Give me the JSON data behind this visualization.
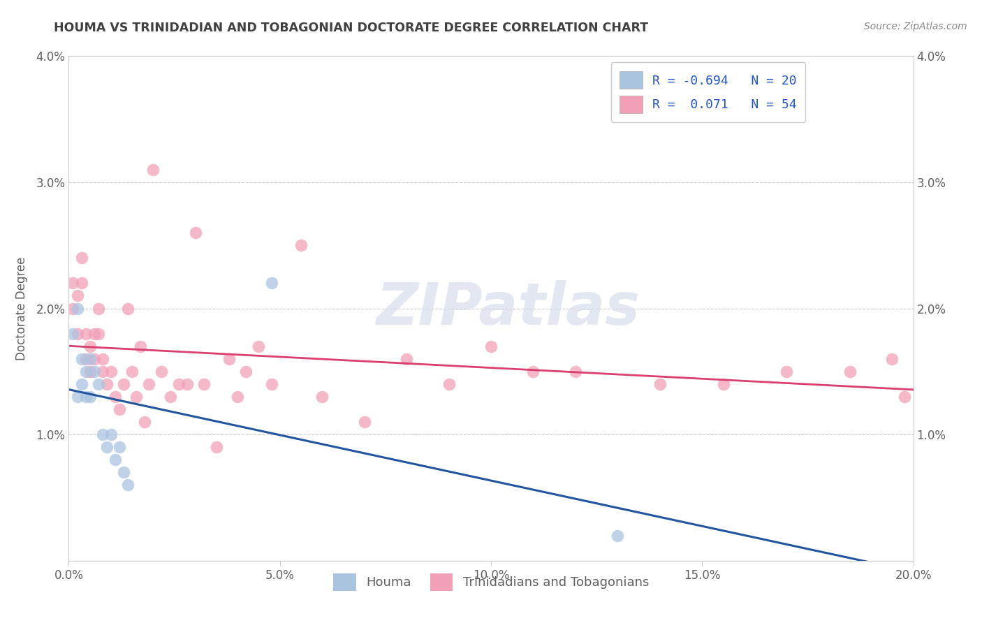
{
  "title": "HOUMA VS TRINIDADIAN AND TOBAGONIAN DOCTORATE DEGREE CORRELATION CHART",
  "source": "Source: ZipAtlas.com",
  "ylabel": "Doctorate Degree",
  "legend_label1": "R = -0.694   N = 20",
  "legend_label2": "R =  0.071   N = 54",
  "legend_name1": "Houma",
  "legend_name2": "Trinidadians and Tobagonians",
  "color1": "#aac4e0",
  "color2": "#f2a0b8",
  "line_color1": "#2255a0",
  "line_color2": "#d94070",
  "xlim": [
    0.0,
    0.2
  ],
  "ylim": [
    0.0,
    0.04
  ],
  "xticks": [
    0.0,
    0.05,
    0.1,
    0.15,
    0.2
  ],
  "yticks": [
    0.0,
    0.01,
    0.02,
    0.03,
    0.04
  ],
  "xticklabels": [
    "0.0%",
    "5.0%",
    "10.0%",
    "15.0%",
    "20.0%"
  ],
  "yticklabels": [
    "",
    "1.0%",
    "2.0%",
    "3.0%",
    "4.0%"
  ],
  "houma_x": [
    0.001,
    0.002,
    0.002,
    0.003,
    0.003,
    0.004,
    0.004,
    0.005,
    0.005,
    0.006,
    0.007,
    0.008,
    0.009,
    0.01,
    0.011,
    0.012,
    0.013,
    0.014,
    0.048,
    0.13
  ],
  "houma_y": [
    0.018,
    0.02,
    0.013,
    0.016,
    0.014,
    0.015,
    0.013,
    0.016,
    0.013,
    0.015,
    0.014,
    0.01,
    0.009,
    0.01,
    0.008,
    0.009,
    0.007,
    0.006,
    0.022,
    0.002
  ],
  "trint_x": [
    0.001,
    0.001,
    0.002,
    0.002,
    0.003,
    0.003,
    0.004,
    0.004,
    0.005,
    0.005,
    0.006,
    0.006,
    0.007,
    0.007,
    0.008,
    0.008,
    0.009,
    0.01,
    0.011,
    0.012,
    0.013,
    0.014,
    0.015,
    0.016,
    0.017,
    0.018,
    0.019,
    0.02,
    0.022,
    0.024,
    0.026,
    0.028,
    0.03,
    0.032,
    0.035,
    0.038,
    0.04,
    0.042,
    0.045,
    0.048,
    0.055,
    0.06,
    0.07,
    0.08,
    0.09,
    0.1,
    0.11,
    0.12,
    0.14,
    0.155,
    0.17,
    0.185,
    0.195,
    0.198
  ],
  "trint_y": [
    0.02,
    0.022,
    0.018,
    0.021,
    0.022,
    0.024,
    0.016,
    0.018,
    0.015,
    0.017,
    0.016,
    0.018,
    0.018,
    0.02,
    0.015,
    0.016,
    0.014,
    0.015,
    0.013,
    0.012,
    0.014,
    0.02,
    0.015,
    0.013,
    0.017,
    0.011,
    0.014,
    0.031,
    0.015,
    0.013,
    0.014,
    0.014,
    0.026,
    0.014,
    0.009,
    0.016,
    0.013,
    0.015,
    0.017,
    0.014,
    0.025,
    0.013,
    0.011,
    0.016,
    0.014,
    0.017,
    0.015,
    0.015,
    0.014,
    0.014,
    0.015,
    0.015,
    0.016,
    0.013
  ],
  "background_color": "#ffffff",
  "grid_color": "#cccccc",
  "title_color": "#404040",
  "tick_color": "#606060",
  "axis_color": "#cccccc",
  "watermark_color": "#d0d8e8",
  "watermark_text": "ZIPatlas"
}
